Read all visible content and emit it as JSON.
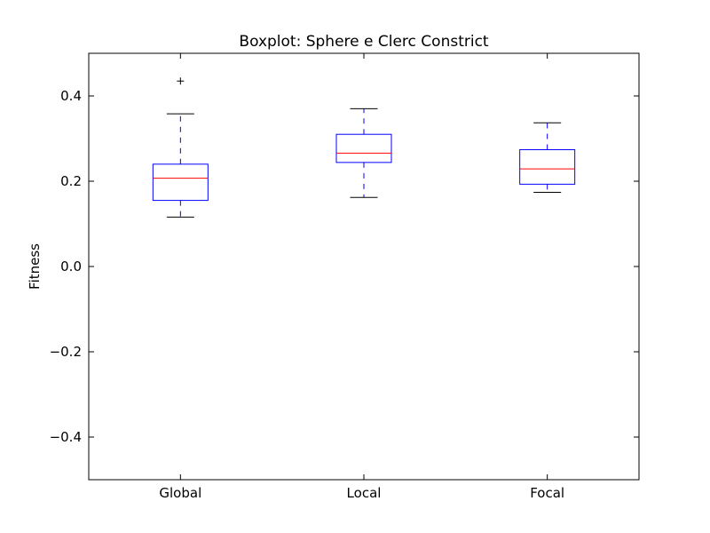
{
  "chart_data": {
    "type": "box",
    "title": "Boxplot: Sphere e Clerc Constrict",
    "xlabel": "",
    "ylabel": "Fitness",
    "ylim": [
      -0.5,
      0.5
    ],
    "yticks": [
      -0.4,
      -0.2,
      0.0,
      0.2,
      0.4
    ],
    "ytick_labels": [
      "−0.4",
      "−0.2",
      "0.0",
      "0.2",
      "0.4"
    ],
    "grid": false,
    "categories": [
      "Global",
      "Local",
      "Focal"
    ],
    "boxes": [
      {
        "whisker_low": 0.116,
        "q1": 0.155,
        "median": 0.207,
        "q3": 0.24,
        "whisker_high": 0.358,
        "outliers": [
          0.435
        ]
      },
      {
        "whisker_low": 0.162,
        "q1": 0.244,
        "median": 0.266,
        "q3": 0.31,
        "whisker_high": 0.37,
        "outliers": []
      },
      {
        "whisker_low": 0.174,
        "q1": 0.193,
        "median": 0.229,
        "q3": 0.274,
        "whisker_high": 0.337,
        "outliers": []
      }
    ],
    "colors": {
      "box": "#0000ff",
      "median": "#ff0000",
      "whisker": "#0000ff",
      "cap": "#000000",
      "outlier": "#000000"
    }
  }
}
